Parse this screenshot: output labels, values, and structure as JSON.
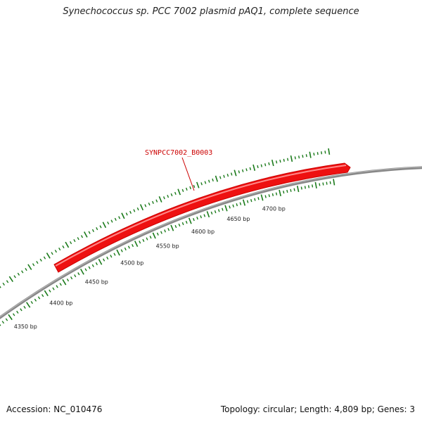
{
  "title": "Synechococcus sp. PCC 7002 plasmid pAQ1, complete sequence",
  "footer": {
    "accession": "Accession: NC_010476",
    "summary": "Topology: circular; Length: 4,809 bp; Genes: 3"
  },
  "colors": {
    "backbone": "#888888",
    "gene": "#ee1111",
    "gene_label": "#cc0000",
    "tick": "#1a7a1a"
  },
  "scale_labels": [
    {
      "bp": 4350,
      "text": "4350 bp"
    },
    {
      "bp": 4400,
      "text": "4400 bp"
    },
    {
      "bp": 4450,
      "text": "4450 bp"
    },
    {
      "bp": 4500,
      "text": "4500 bp"
    },
    {
      "bp": 4550,
      "text": "4550 bp"
    },
    {
      "bp": 4600,
      "text": "4600 bp"
    },
    {
      "bp": 4650,
      "text": "4650 bp"
    },
    {
      "bp": 4700,
      "text": "4700 bp"
    }
  ],
  "genes": [
    {
      "name": "SYNPCC7002_B0003",
      "strand": "+"
    }
  ]
}
